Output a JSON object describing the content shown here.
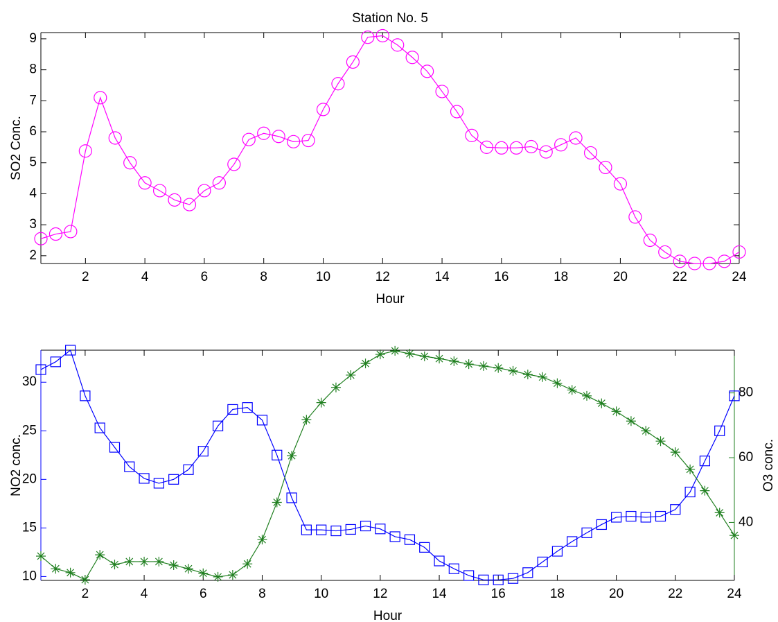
{
  "chart_data": [
    {
      "type": "line",
      "title": "Station No. 5",
      "xlabel": "Hour",
      "ylabel": "SO2 Conc.",
      "x": [
        0.5,
        1,
        1.5,
        2,
        2.5,
        3,
        3.5,
        4,
        4.5,
        5,
        5.5,
        6,
        6.5,
        7,
        7.5,
        8,
        8.5,
        9,
        9.5,
        10,
        10.5,
        11,
        11.5,
        12,
        12.5,
        13,
        13.5,
        14,
        14.5,
        15,
        15.5,
        16,
        16.5,
        17,
        17.5,
        18,
        18.5,
        19,
        19.5,
        20,
        20.5,
        21,
        21.5,
        22,
        22.5,
        23,
        23.5,
        24
      ],
      "series": [
        {
          "name": "SO2",
          "color": "#ff00ff",
          "marker": "o",
          "values": [
            2.55,
            2.7,
            2.78,
            5.38,
            7.1,
            5.8,
            5.0,
            4.35,
            4.1,
            3.8,
            3.65,
            4.1,
            4.35,
            4.95,
            5.75,
            5.95,
            5.85,
            5.68,
            5.72,
            6.72,
            7.55,
            8.25,
            9.05,
            9.1,
            8.8,
            8.4,
            7.95,
            7.3,
            6.65,
            5.88,
            5.5,
            5.48,
            5.48,
            5.52,
            5.35,
            5.58,
            5.8,
            5.32,
            4.85,
            4.32,
            3.25,
            2.5,
            2.12,
            1.82,
            1.75,
            1.75,
            1.82,
            2.12
          ]
        }
      ],
      "xlim": [
        0.5,
        24
      ],
      "xticks": [
        2,
        4,
        6,
        8,
        10,
        12,
        14,
        16,
        18,
        20,
        22,
        24
      ],
      "ylim": [
        1.75,
        9.2
      ],
      "yticks": [
        2,
        3,
        4,
        5,
        6,
        7,
        8,
        9
      ]
    },
    {
      "type": "line",
      "xlabel": "Hour",
      "ylabel": "NO2 conc.",
      "y2label": "O3 conc.",
      "x": [
        0.5,
        1,
        1.5,
        2,
        2.5,
        3,
        3.5,
        4,
        4.5,
        5,
        5.5,
        6,
        6.5,
        7,
        7.5,
        8,
        8.5,
        9,
        9.5,
        10,
        10.5,
        11,
        11.5,
        12,
        12.5,
        13,
        13.5,
        14,
        14.5,
        15,
        15.5,
        16,
        16.5,
        17,
        17.5,
        18,
        18.5,
        19,
        19.5,
        20,
        20.5,
        21,
        21.5,
        22,
        22.5,
        23,
        23.5,
        24
      ],
      "series": [
        {
          "name": "NO2",
          "color": "#0000ff",
          "marker": "s",
          "values": [
            31.3,
            32.1,
            33.3,
            28.6,
            25.3,
            23.3,
            21.3,
            20.1,
            19.6,
            20.0,
            21.0,
            22.9,
            25.5,
            27.2,
            27.4,
            26.1,
            22.5,
            18.1,
            14.8,
            14.8,
            14.7,
            14.85,
            15.2,
            14.9,
            14.1,
            13.8,
            13.0,
            11.6,
            10.8,
            10.1,
            9.65,
            9.65,
            9.8,
            10.4,
            11.5,
            12.6,
            13.6,
            14.5,
            15.35,
            16.1,
            16.2,
            16.1,
            16.2,
            16.9,
            18.7,
            21.9,
            25.0,
            28.6
          ]
        },
        {
          "name": "O3",
          "color": "#1f7f1f",
          "marker": "*",
          "axis": "y2",
          "values": [
            29.6,
            25.7,
            24.5,
            22.3,
            30,
            27,
            27.9,
            27.9,
            27.9,
            26.8,
            25.7,
            24.3,
            23.2,
            23.8,
            27.2,
            34.7,
            46.2,
            60.6,
            71.7,
            77,
            81.7,
            85.5,
            89.1,
            91.9,
            93,
            92.1,
            91.3,
            90.6,
            89.8,
            88.9,
            88.3,
            87.7,
            86.8,
            85.7,
            84.9,
            83,
            80.9,
            79.1,
            76.8,
            74.3,
            71.3,
            68.3,
            65.1,
            61.7,
            56.4,
            49.8,
            43,
            36
          ]
        }
      ],
      "xlim": [
        0.5,
        24
      ],
      "xticks": [
        2,
        4,
        6,
        8,
        10,
        12,
        14,
        16,
        18,
        20,
        22,
        24
      ],
      "ylim": [
        9.6,
        33.3
      ],
      "yticks": [
        10,
        15,
        20,
        25,
        30
      ],
      "y2lim": [
        22.1,
        93.2
      ],
      "y2ticks": [
        40,
        60,
        80
      ]
    }
  ]
}
